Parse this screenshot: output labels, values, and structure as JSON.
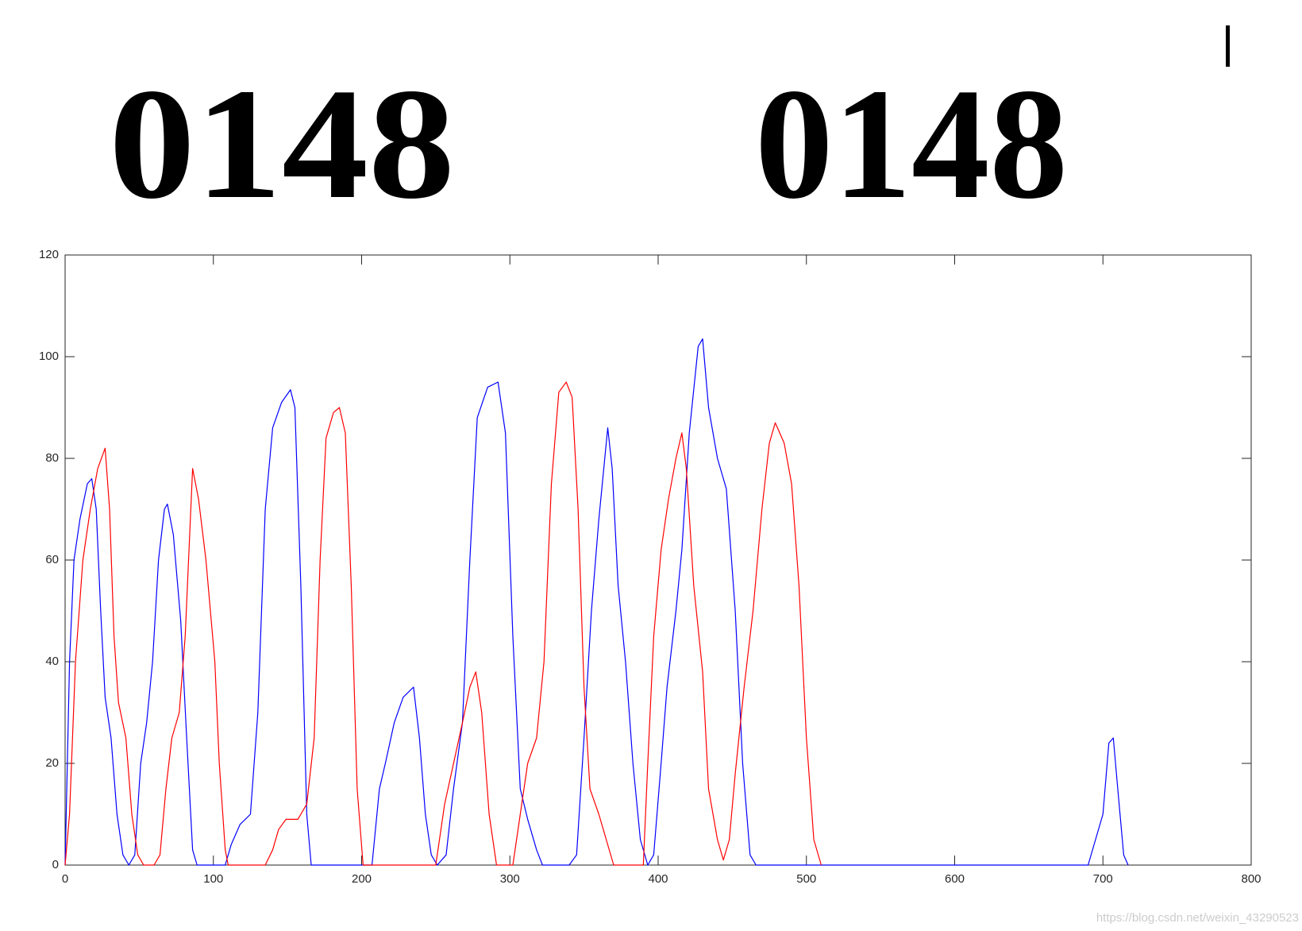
{
  "panels": [
    "0148",
    "0148"
  ],
  "watermark": "https://blog.csdn.net/weixin_43290523",
  "chart_data": {
    "type": "line",
    "xlim": [
      0,
      800
    ],
    "xticks": [
      0,
      100,
      200,
      300,
      400,
      500,
      600,
      700,
      800
    ],
    "ylim": [
      0,
      120
    ],
    "yticks": [
      0,
      20,
      40,
      60,
      80,
      100,
      120
    ],
    "series": [
      {
        "color": "#0000ff",
        "x": [
          0,
          3,
          6,
          10,
          15,
          18,
          21,
          24,
          27,
          31,
          35,
          39,
          43,
          47,
          51,
          55,
          59,
          63,
          67,
          69,
          73,
          78,
          82,
          86,
          89,
          100,
          108,
          112,
          118,
          125,
          130,
          135,
          140,
          146,
          152,
          155,
          159,
          163,
          166,
          200,
          207,
          212,
          216,
          222,
          228,
          235,
          239,
          243,
          247,
          251,
          257,
          262,
          268,
          273,
          278,
          285,
          292,
          297,
          302,
          307,
          312,
          318,
          322,
          340,
          345,
          350,
          355,
          360,
          366,
          369,
          373,
          378,
          383,
          388,
          393,
          397,
          402,
          406,
          412,
          416,
          421,
          427,
          430,
          434,
          440,
          446,
          452,
          457,
          462,
          466,
          690,
          700,
          704,
          707,
          710,
          714,
          717
        ],
        "values": [
          0,
          40,
          60,
          68,
          75,
          76,
          70,
          50,
          33,
          25,
          10,
          2,
          0,
          2,
          20,
          28,
          40,
          60,
          70,
          71,
          65,
          48,
          25,
          3,
          0,
          0,
          0,
          4,
          8,
          10,
          30,
          70,
          86,
          91,
          93.5,
          90,
          55,
          10,
          0,
          0,
          0,
          15,
          20,
          28,
          33,
          35,
          25,
          10,
          2,
          0,
          2,
          15,
          28,
          60,
          88,
          94,
          95,
          85,
          45,
          15,
          9,
          3,
          0,
          0,
          2,
          25,
          50,
          68,
          86,
          78,
          55,
          40,
          20,
          5,
          0,
          2,
          20,
          35,
          50,
          62,
          85,
          102,
          103.5,
          90,
          80,
          74,
          50,
          20,
          2,
          0,
          0,
          10,
          24,
          25,
          15,
          2,
          0
        ]
      },
      {
        "color": "#ff0000",
        "x": [
          0,
          3,
          7,
          12,
          17,
          22,
          27,
          30,
          33,
          36,
          41,
          45,
          49,
          53,
          60,
          64,
          68,
          72,
          77,
          81,
          86,
          90,
          95,
          101,
          104,
          108,
          110,
          135,
          140,
          144,
          149,
          157,
          163,
          168,
          172,
          176,
          181,
          185,
          189,
          193,
          197,
          201,
          250,
          256,
          262,
          268,
          273,
          277,
          281,
          286,
          291,
          302,
          307,
          312,
          318,
          323,
          328,
          333,
          338,
          342,
          346,
          350,
          354,
          360,
          365,
          370,
          390,
          393,
          397,
          402,
          407,
          412,
          416,
          419,
          424,
          430,
          434,
          440,
          444,
          448,
          452,
          458,
          464,
          470,
          475,
          479,
          485,
          490,
          495,
          500,
          505,
          510
        ],
        "values": [
          0,
          10,
          40,
          60,
          70,
          78,
          82,
          70,
          45,
          32,
          25,
          10,
          2,
          0,
          0,
          2,
          15,
          25,
          30,
          45,
          78,
          72,
          60,
          40,
          20,
          3,
          0,
          0,
          3,
          7,
          9,
          9,
          12,
          25,
          60,
          84,
          89,
          90,
          85,
          55,
          15,
          0,
          0,
          12,
          20,
          28,
          35,
          38,
          30,
          10,
          0,
          0,
          10,
          20,
          25,
          40,
          75,
          93,
          95,
          92,
          70,
          35,
          15,
          10,
          5,
          0,
          0,
          20,
          45,
          62,
          72,
          80,
          85,
          78,
          55,
          38,
          15,
          5,
          1,
          5,
          18,
          35,
          50,
          70,
          83,
          87,
          83,
          75,
          55,
          25,
          5,
          0
        ]
      }
    ]
  }
}
